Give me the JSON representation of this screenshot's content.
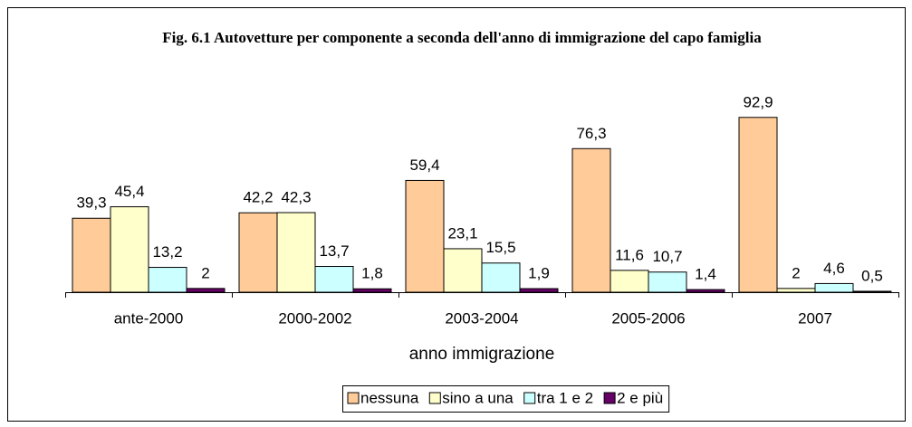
{
  "chart_data": {
    "type": "bar",
    "title": "Fig. 6.1 Autovetture per componente a seconda dell'anno di immigrazione del capo famiglia",
    "x_label": "anno immigrazione",
    "categories": [
      "ante-2000",
      "2000-2002",
      "2003-2004",
      "2005-2006",
      "2007"
    ],
    "series": [
      {
        "name": "nessuna",
        "color": "#FFCC99",
        "values": [
          39.3,
          42.2,
          59.4,
          76.3,
          92.9
        ],
        "value_labels": [
          "39,3",
          "42,2",
          "59,4",
          "76,3",
          "92,9"
        ]
      },
      {
        "name": "sino a una",
        "color": "#FFFFCC",
        "values": [
          45.4,
          42.3,
          23.1,
          11.6,
          2
        ],
        "value_labels": [
          "45,4",
          "42,3",
          "23,1",
          "11,6",
          "2"
        ]
      },
      {
        "name": "tra 1 e 2",
        "color": "#CCFFFF",
        "values": [
          13.2,
          13.7,
          15.5,
          10.7,
          4.6
        ],
        "value_labels": [
          "13,2",
          "13,7",
          "15,5",
          "10,7",
          "4,6"
        ]
      },
      {
        "name": "2 e più",
        "color": "#660066",
        "values": [
          2,
          1.8,
          1.9,
          1.4,
          0.5
        ],
        "value_labels": [
          "2",
          "1,8",
          "1,9",
          "1,4",
          "0,5"
        ]
      }
    ],
    "ylim": [
      0,
      100
    ],
    "legend": "bottom"
  }
}
